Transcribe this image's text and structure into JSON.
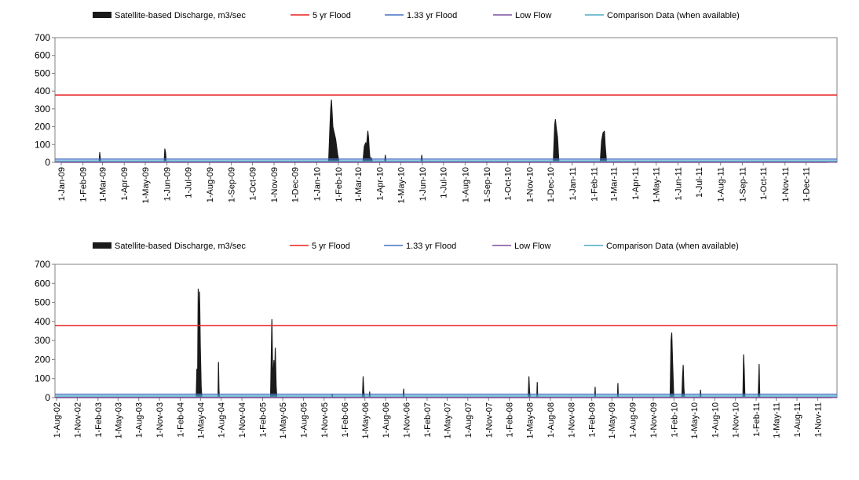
{
  "chart_data": [
    {
      "type": "area",
      "legend": {
        "placement": "top",
        "entries": [
          {
            "label": "Satellite-based Discharge, m3/sec",
            "color": "#1a1a1a",
            "kind": "area"
          },
          {
            "label": "5 yr Flood",
            "color": "#e8201f",
            "kind": "line"
          },
          {
            "label": "1.33 yr Flood",
            "color": "#4472c4",
            "kind": "line"
          },
          {
            "label": "Low Flow",
            "color": "#7f4f9f",
            "kind": "line"
          },
          {
            "label": "Comparison Data (when available)",
            "color": "#4bacc6",
            "kind": "line"
          }
        ]
      },
      "y_ticks": [
        "0",
        "100",
        "200",
        "300",
        "400",
        "500",
        "600",
        "700"
      ],
      "ylim": [
        0,
        700
      ],
      "xlim": [
        "2009-01-01",
        "2011-12-31"
      ],
      "x_ticks": [
        "1-Jan-09",
        "1-Feb-09",
        "1-Mar-09",
        "1-Apr-09",
        "1-May-09",
        "1-Jun-09",
        "1-Jul-09",
        "1-Aug-09",
        "1-Sep-09",
        "1-Oct-09",
        "1-Nov-09",
        "1-Dec-09",
        "1-Jan-10",
        "1-Feb-10",
        "1-Mar-10",
        "1-Apr-10",
        "1-May-10",
        "1-Jun-10",
        "1-Jul-10",
        "1-Aug-10",
        "1-Sep-10",
        "1-Oct-10",
        "1-Nov-10",
        "1-Dec-10",
        "1-Jan-11",
        "1-Feb-11",
        "1-Mar-11",
        "1-Apr-11",
        "1-May-11",
        "1-Jun-11",
        "1-Jul-11",
        "1-Aug-11",
        "1-Sep-11",
        "1-Oct-11",
        "1-Nov-11",
        "1-Dec-11"
      ],
      "x_tick_dates": [
        "2009-01-01",
        "2009-02-01",
        "2009-03-01",
        "2009-04-01",
        "2009-05-01",
        "2009-06-01",
        "2009-07-01",
        "2009-08-01",
        "2009-09-01",
        "2009-10-01",
        "2009-11-01",
        "2009-12-01",
        "2010-01-01",
        "2010-02-01",
        "2010-03-01",
        "2010-04-01",
        "2010-05-01",
        "2010-06-01",
        "2010-07-01",
        "2010-08-01",
        "2010-09-01",
        "2010-10-01",
        "2010-11-01",
        "2010-12-01",
        "2011-01-01",
        "2011-02-01",
        "2011-03-01",
        "2011-04-01",
        "2011-05-01",
        "2011-06-01",
        "2011-07-01",
        "2011-08-01",
        "2011-09-01",
        "2011-10-01",
        "2011-11-01",
        "2011-12-01"
      ],
      "reference_lines": [
        {
          "name": "5 yr Flood",
          "value": 378,
          "color": "#e8201f"
        },
        {
          "name": "1.33 yr Flood",
          "value": 18,
          "color": "#4472c4"
        },
        {
          "name": "Comparison Data (when available)",
          "value": 8,
          "color": "#4bacc6"
        },
        {
          "name": "Low Flow",
          "value": 1,
          "color": "#7f4f9f"
        }
      ],
      "discharge": [
        [
          "2009-01-01",
          0
        ],
        [
          "2009-02-24",
          0
        ],
        [
          "2009-02-25",
          55
        ],
        [
          "2009-02-26",
          12
        ],
        [
          "2009-02-27",
          0
        ],
        [
          "2009-05-28",
          0
        ],
        [
          "2009-05-29",
          75
        ],
        [
          "2009-05-30",
          55
        ],
        [
          "2009-05-31",
          0
        ],
        [
          "2010-01-18",
          0
        ],
        [
          "2010-01-20",
          210
        ],
        [
          "2010-01-21",
          300
        ],
        [
          "2010-01-22",
          350
        ],
        [
          "2010-01-24",
          200
        ],
        [
          "2010-01-26",
          165
        ],
        [
          "2010-01-28",
          130
        ],
        [
          "2010-01-31",
          40
        ],
        [
          "2010-02-02",
          0
        ],
        [
          "2010-03-08",
          0
        ],
        [
          "2010-03-10",
          90
        ],
        [
          "2010-03-12",
          110
        ],
        [
          "2010-03-13",
          80
        ],
        [
          "2010-03-14",
          130
        ],
        [
          "2010-03-15",
          175
        ],
        [
          "2010-03-16",
          140
        ],
        [
          "2010-03-17",
          70
        ],
        [
          "2010-03-18",
          25
        ],
        [
          "2010-03-20",
          25
        ],
        [
          "2010-03-22",
          0
        ],
        [
          "2010-04-08",
          0
        ],
        [
          "2010-04-09",
          40
        ],
        [
          "2010-04-10",
          0
        ],
        [
          "2010-05-30",
          0
        ],
        [
          "2010-05-31",
          40
        ],
        [
          "2010-06-01",
          0
        ],
        [
          "2010-12-05",
          0
        ],
        [
          "2010-12-07",
          210
        ],
        [
          "2010-12-08",
          240
        ],
        [
          "2010-12-09",
          200
        ],
        [
          "2010-12-11",
          140
        ],
        [
          "2010-12-13",
          0
        ],
        [
          "2011-02-10",
          0
        ],
        [
          "2011-02-12",
          120
        ],
        [
          "2011-02-14",
          165
        ],
        [
          "2011-02-16",
          175
        ],
        [
          "2011-02-17",
          100
        ],
        [
          "2011-02-19",
          0
        ],
        [
          "2011-12-31",
          0
        ]
      ]
    },
    {
      "type": "area",
      "legend": {
        "placement": "top",
        "entries": [
          {
            "label": "Satellite-based Discharge, m3/sec",
            "color": "#1a1a1a",
            "kind": "area"
          },
          {
            "label": "5 yr Flood",
            "color": "#e8201f",
            "kind": "line"
          },
          {
            "label": "1.33 yr Flood",
            "color": "#4472c4",
            "kind": "line"
          },
          {
            "label": "Low Flow",
            "color": "#7f4f9f",
            "kind": "line"
          },
          {
            "label": "Comparison Data (when available)",
            "color": "#4bacc6",
            "kind": "line"
          }
        ]
      },
      "y_ticks": [
        "0",
        "100",
        "200",
        "300",
        "400",
        "500",
        "600",
        "700"
      ],
      "ylim": [
        0,
        700
      ],
      "xlim": [
        "2002-08-01",
        "2011-12-31"
      ],
      "x_ticks": [
        "1-Aug-02",
        "1-Nov-02",
        "1-Feb-03",
        "1-May-03",
        "1-Aug-03",
        "1-Nov-03",
        "1-Feb-04",
        "1-May-04",
        "1-Aug-04",
        "1-Nov-04",
        "1-Feb-05",
        "1-May-05",
        "1-Aug-05",
        "1-Nov-05",
        "1-Feb-06",
        "1-May-06",
        "1-Aug-06",
        "1-Nov-06",
        "1-Feb-07",
        "1-May-07",
        "1-Aug-07",
        "1-Nov-07",
        "1-Feb-08",
        "1-May-08",
        "1-Aug-08",
        "1-Nov-08",
        "1-Feb-09",
        "1-May-09",
        "1-Aug-09",
        "1-Nov-09",
        "1-Feb-10",
        "1-May-10",
        "1-Aug-10",
        "1-Nov-10",
        "1-Feb-11",
        "1-May-11",
        "1-Aug-11",
        "1-Nov-11"
      ],
      "x_tick_dates": [
        "2002-08-01",
        "2002-11-01",
        "2003-02-01",
        "2003-05-01",
        "2003-08-01",
        "2003-11-01",
        "2004-02-01",
        "2004-05-01",
        "2004-08-01",
        "2004-11-01",
        "2005-02-01",
        "2005-05-01",
        "2005-08-01",
        "2005-11-01",
        "2006-02-01",
        "2006-05-01",
        "2006-08-01",
        "2006-11-01",
        "2007-02-01",
        "2007-05-01",
        "2007-08-01",
        "2007-11-01",
        "2008-02-01",
        "2008-05-01",
        "2008-08-01",
        "2008-11-01",
        "2009-02-01",
        "2009-05-01",
        "2009-08-01",
        "2009-11-01",
        "2010-02-01",
        "2010-05-01",
        "2010-08-01",
        "2010-11-01",
        "2011-02-01",
        "2011-05-01",
        "2011-08-01",
        "2011-11-01"
      ],
      "reference_lines": [
        {
          "name": "5 yr Flood",
          "value": 378,
          "color": "#e8201f"
        },
        {
          "name": "1.33 yr Flood",
          "value": 18,
          "color": "#4472c4"
        },
        {
          "name": "Comparison Data (when available)",
          "value": 8,
          "color": "#4bacc6"
        },
        {
          "name": "Low Flow",
          "value": 1,
          "color": "#7f4f9f"
        }
      ],
      "discharge": [
        [
          "2002-08-01",
          0
        ],
        [
          "2004-04-12",
          0
        ],
        [
          "2004-04-15",
          150
        ],
        [
          "2004-04-18",
          50
        ],
        [
          "2004-04-21",
          570
        ],
        [
          "2004-04-24",
          330
        ],
        [
          "2004-04-27",
          555
        ],
        [
          "2004-04-30",
          280
        ],
        [
          "2004-05-04",
          60
        ],
        [
          "2004-05-07",
          0
        ],
        [
          "2004-07-18",
          0
        ],
        [
          "2004-07-20",
          185
        ],
        [
          "2004-07-22",
          40
        ],
        [
          "2004-07-24",
          0
        ],
        [
          "2005-03-08",
          0
        ],
        [
          "2005-03-11",
          200
        ],
        [
          "2005-03-14",
          410
        ],
        [
          "2005-03-17",
          160
        ],
        [
          "2005-03-20",
          120
        ],
        [
          "2005-03-23",
          195
        ],
        [
          "2005-03-26",
          90
        ],
        [
          "2005-03-29",
          260
        ],
        [
          "2005-04-02",
          60
        ],
        [
          "2005-04-05",
          0
        ],
        [
          "2005-12-05",
          0
        ],
        [
          "2005-12-07",
          15
        ],
        [
          "2005-12-09",
          0
        ],
        [
          "2006-04-20",
          0
        ],
        [
          "2006-04-23",
          110
        ],
        [
          "2006-04-26",
          35
        ],
        [
          "2006-04-29",
          0
        ],
        [
          "2006-05-20",
          0
        ],
        [
          "2006-05-22",
          30
        ],
        [
          "2006-05-24",
          0
        ],
        [
          "2006-10-18",
          0
        ],
        [
          "2006-10-20",
          45
        ],
        [
          "2006-10-22",
          0
        ],
        [
          "2008-04-25",
          0
        ],
        [
          "2008-04-28",
          110
        ],
        [
          "2008-05-01",
          30
        ],
        [
          "2008-05-04",
          0
        ],
        [
          "2008-06-02",
          0
        ],
        [
          "2008-06-04",
          80
        ],
        [
          "2008-06-06",
          0
        ],
        [
          "2009-02-14",
          0
        ],
        [
          "2009-02-16",
          55
        ],
        [
          "2009-02-18",
          0
        ],
        [
          "2009-05-26",
          0
        ],
        [
          "2009-05-28",
          75
        ],
        [
          "2009-05-30",
          0
        ],
        [
          "2010-01-15",
          0
        ],
        [
          "2010-01-19",
          300
        ],
        [
          "2010-01-22",
          340
        ],
        [
          "2010-01-26",
          180
        ],
        [
          "2010-01-31",
          0
        ],
        [
          "2010-03-08",
          0
        ],
        [
          "2010-03-11",
          110
        ],
        [
          "2010-03-14",
          170
        ],
        [
          "2010-03-17",
          50
        ],
        [
          "2010-03-20",
          0
        ],
        [
          "2010-05-28",
          0
        ],
        [
          "2010-05-30",
          40
        ],
        [
          "2010-06-01",
          0
        ],
        [
          "2010-12-04",
          0
        ],
        [
          "2010-12-07",
          225
        ],
        [
          "2010-12-10",
          140
        ],
        [
          "2010-12-13",
          0
        ],
        [
          "2011-02-10",
          0
        ],
        [
          "2011-02-14",
          175
        ],
        [
          "2011-02-17",
          0
        ],
        [
          "2011-12-31",
          0
        ]
      ]
    }
  ]
}
